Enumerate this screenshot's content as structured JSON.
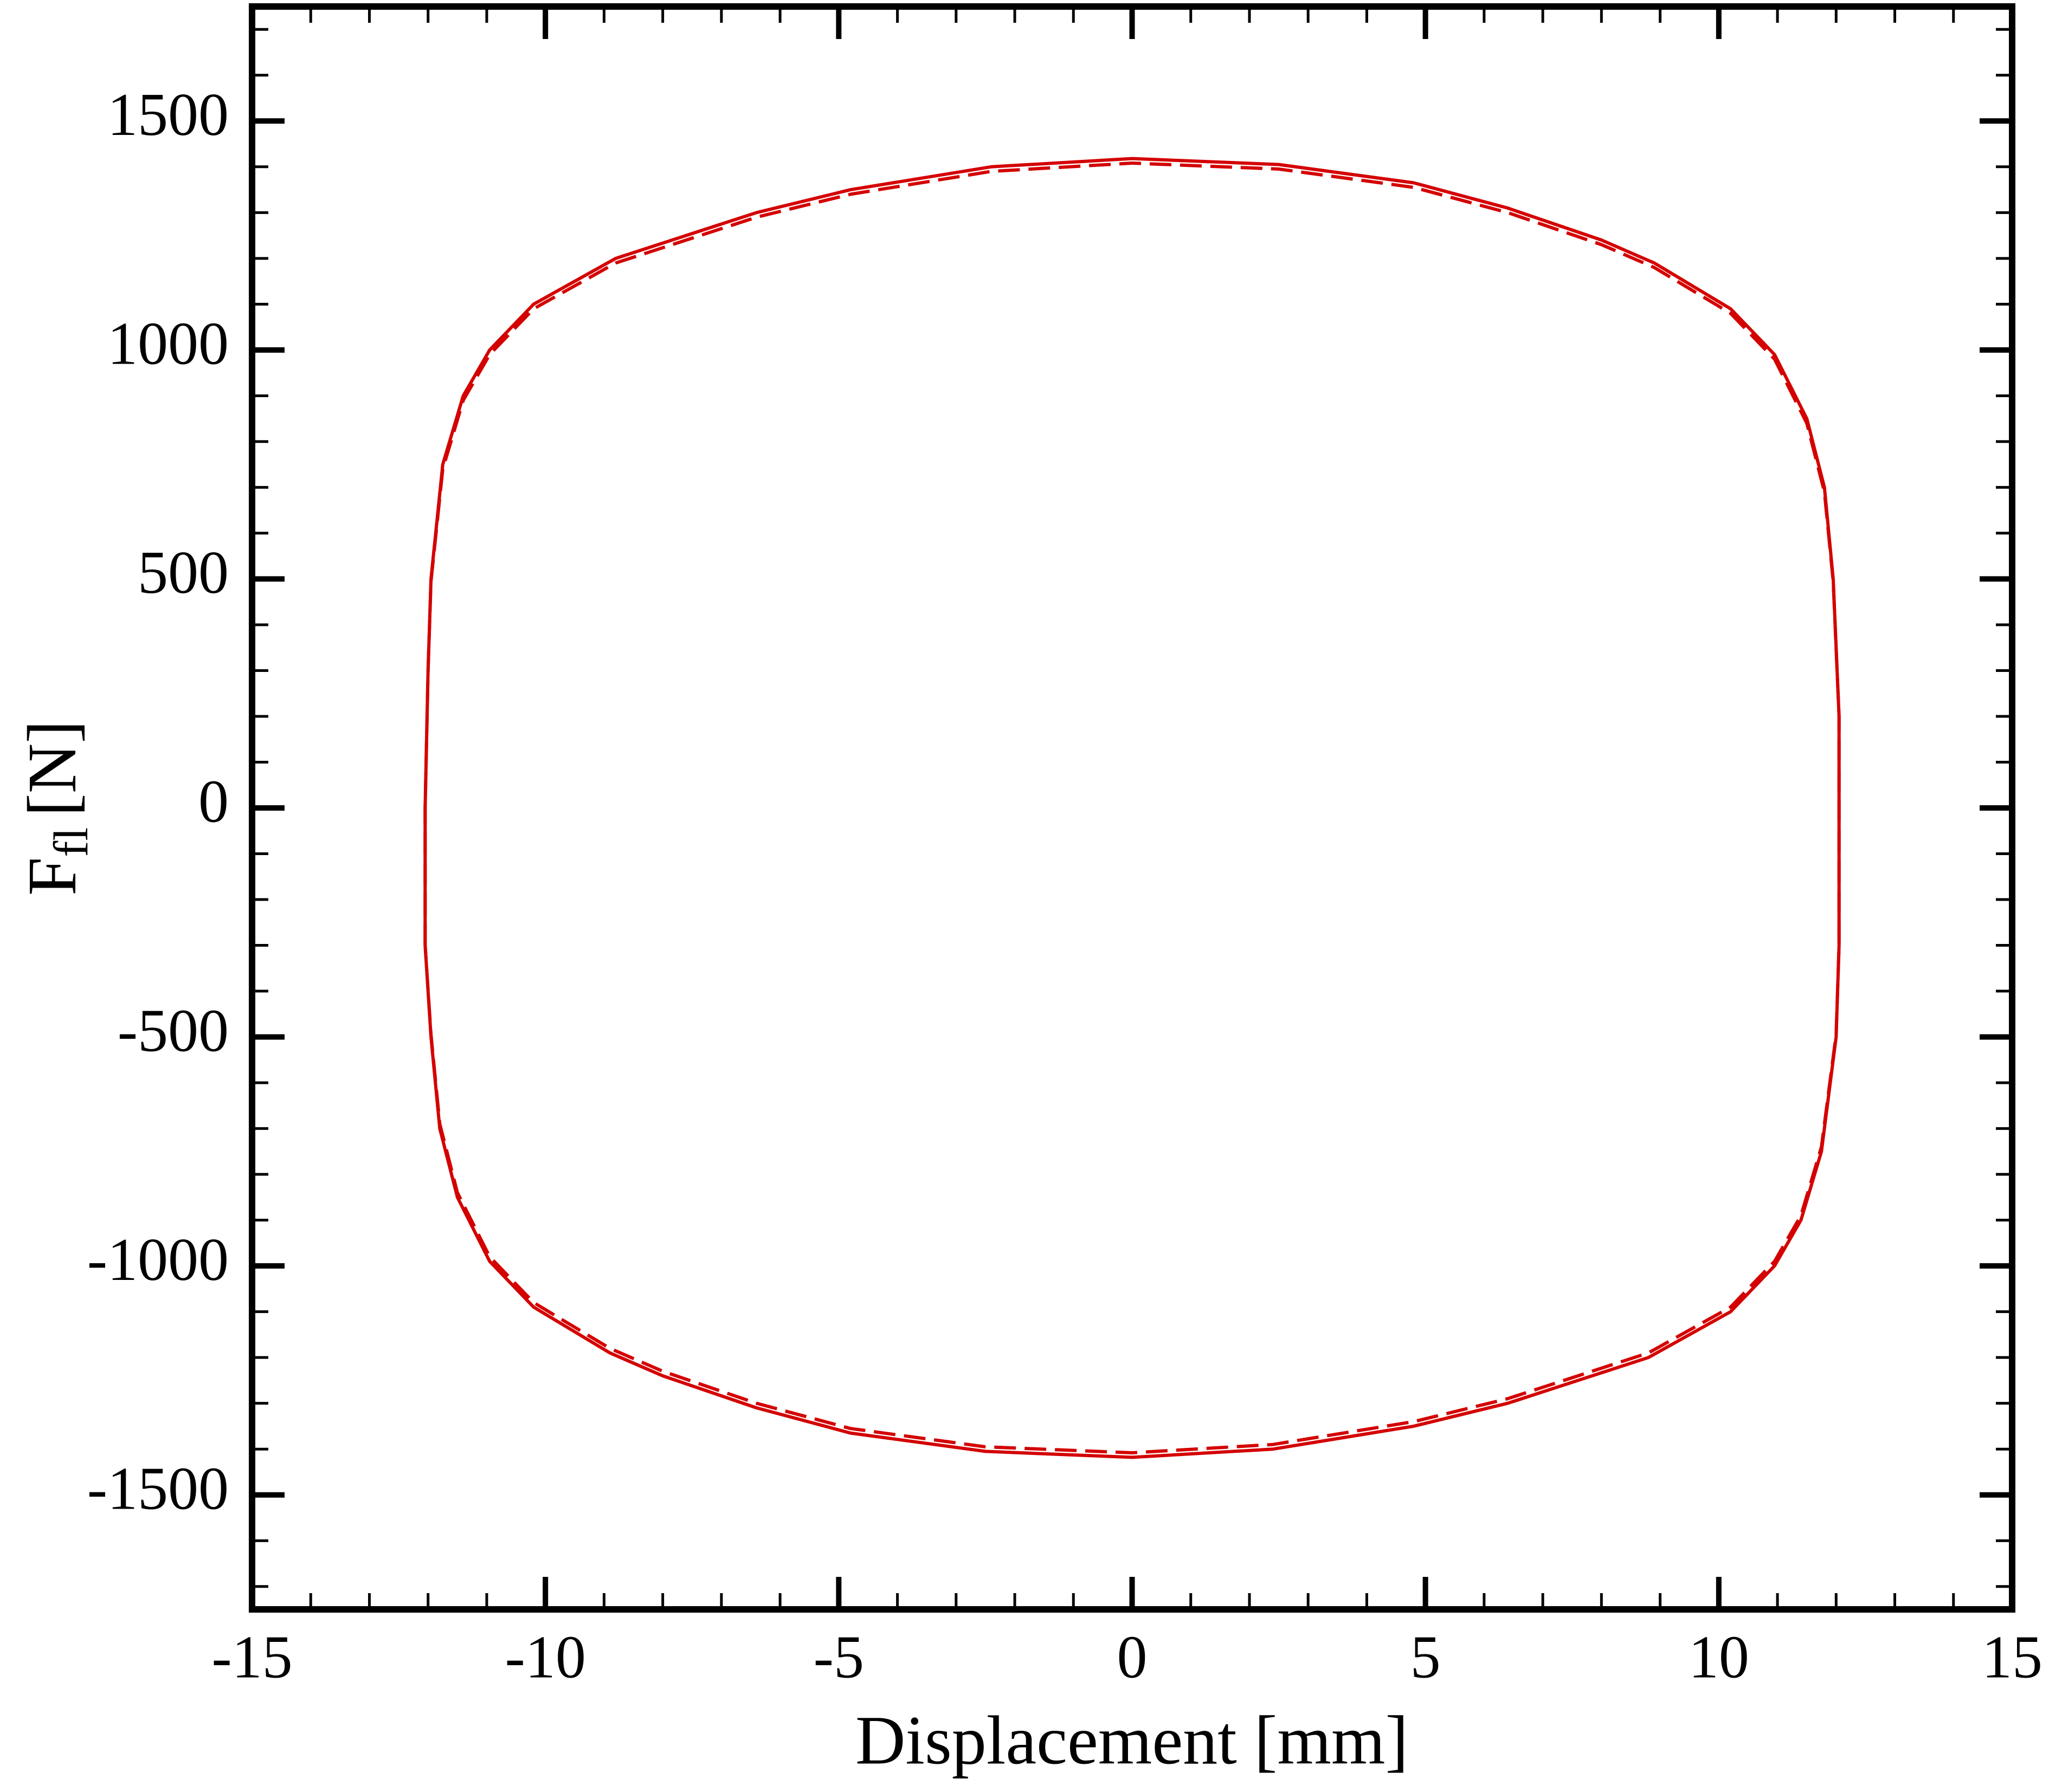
{
  "chart_data": {
    "type": "line",
    "xlabel": "Displacement [mm]",
    "ylabel": "F",
    "ylabel_sub": "fl",
    "ylabel_unit": "[N]",
    "x": [
      -12.05,
      -12.05,
      -12.0,
      -11.95,
      -11.75,
      -11.4,
      -10.95,
      -10.2,
      -8.8,
      -6.4,
      -4.8,
      -2.4,
      0,
      2.5,
      4.8,
      6.4,
      8.0,
      8.9,
      10.2,
      10.95,
      11.5,
      11.8,
      11.95,
      12.05,
      12.05,
      12.05,
      12.0,
      11.75,
      11.4,
      10.95,
      10.2,
      8.8,
      6.4,
      4.8,
      2.4,
      0,
      -2.5,
      -4.8,
      -6.4,
      -8.0,
      -8.9,
      -10.2,
      -10.95,
      -11.5,
      -11.8,
      -11.95,
      -12.05
    ],
    "series": [
      {
        "name": "solid",
        "color": "#d40000",
        "dash": false,
        "values": [
          -300,
          0,
          300,
          500,
          750,
          900,
          1000,
          1100,
          1200,
          1300,
          1350,
          1400,
          1418,
          1405,
          1365,
          1310,
          1240,
          1190,
          1090,
          990,
          850,
          700,
          500,
          200,
          0,
          -300,
          -500,
          -750,
          -900,
          -1000,
          -1100,
          -1200,
          -1300,
          -1350,
          -1400,
          -1418,
          -1405,
          -1365,
          -1310,
          -1240,
          -1190,
          -1090,
          -990,
          -850,
          -700,
          -500,
          -300
        ]
      },
      {
        "name": "dashed",
        "color": "#d40000",
        "dash": true,
        "values": [
          -300,
          0,
          300,
          495,
          740,
          890,
          990,
          1090,
          1190,
          1290,
          1340,
          1390,
          1408,
          1395,
          1355,
          1300,
          1230,
          1180,
          1080,
          980,
          840,
          690,
          495,
          200,
          0,
          -300,
          -495,
          -740,
          -890,
          -990,
          -1090,
          -1190,
          -1290,
          -1340,
          -1390,
          -1408,
          -1395,
          -1355,
          -1300,
          -1230,
          -1180,
          -1080,
          -980,
          -840,
          -690,
          -495,
          -300
        ]
      }
    ],
    "xlim": [
      -15,
      15
    ],
    "xticks": [
      -15,
      -10,
      -5,
      0,
      5,
      10,
      15
    ],
    "ylim": [
      -1750,
      1750
    ],
    "yticks": [
      -1500,
      -1000,
      -500,
      0,
      500,
      1000,
      1500
    ],
    "grid": false
  }
}
